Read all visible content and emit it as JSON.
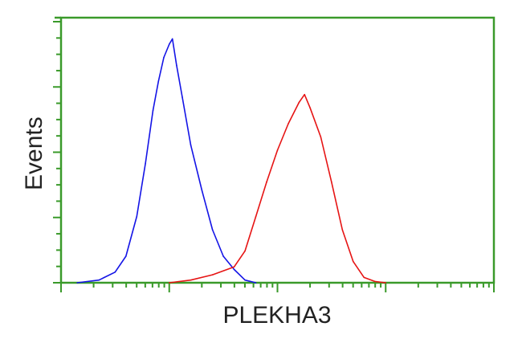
{
  "chart_data": {
    "type": "line",
    "title": "",
    "xlabel": "PLEKHA3",
    "ylabel": "Events",
    "x_scale": "log",
    "xlim": [
      1,
      10000
    ],
    "ylim": [
      0,
      100
    ],
    "grid": false,
    "colors": {
      "axis": "#3a9a2a",
      "background": "#ffffff"
    },
    "series": [
      {
        "color": "#1414e6",
        "x": [
          1.41,
          2.24,
          3.16,
          3.98,
          5.01,
          6.03,
          7.08,
          7.94,
          8.91,
          10,
          10.7,
          11.7,
          13.2,
          15.8,
          20,
          25.1,
          31.6,
          39.8,
          50.1,
          63.1
        ],
        "y": [
          0,
          1,
          4,
          10,
          25,
          45,
          65,
          76,
          85,
          90,
          92,
          82,
          70,
          52,
          35,
          20,
          10,
          5,
          1,
          0
        ]
      },
      {
        "color": "#e61414",
        "x": [
          10,
          15.8,
          25.1,
          39.8,
          50.1,
          63.1,
          79.4,
          100,
          126,
          158,
          178,
          200,
          251,
          316,
          398,
          501,
          631,
          794,
          1000
        ],
        "y": [
          0,
          1,
          3,
          6,
          12,
          25,
          38,
          50,
          60,
          68,
          71,
          66,
          55,
          38,
          20,
          8,
          2,
          0.5,
          0
        ]
      }
    ]
  }
}
